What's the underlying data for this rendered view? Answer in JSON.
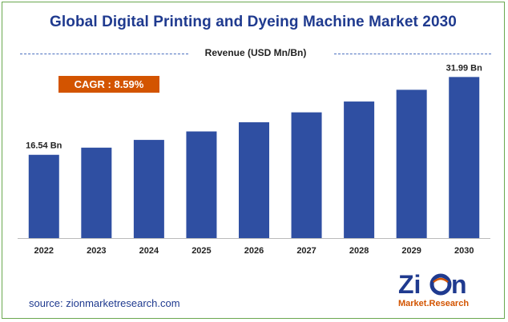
{
  "title": "Global Digital Printing and Dyeing Machine Market 2030",
  "subtitle": "Revenue (USD Mn/Bn)",
  "cagr": "CAGR : 8.59%",
  "source": "source: zionmarketresearch.com",
  "logo": {
    "top": "Zion",
    "bottom": "Market.Research"
  },
  "colors": {
    "bar": "#2f4fa2",
    "title": "#1f3a8f",
    "cagr_badge": "#d35400",
    "frame": "#6aa84f"
  },
  "chart_data": {
    "type": "bar",
    "categories": [
      "2022",
      "2023",
      "2024",
      "2025",
      "2026",
      "2027",
      "2028",
      "2029",
      "2030"
    ],
    "values": [
      16.54,
      17.96,
      19.5,
      21.18,
      23.0,
      24.97,
      27.12,
      29.45,
      31.99
    ],
    "data_labels": [
      {
        "index": 0,
        "text": "16.54 Bn"
      },
      {
        "index": 8,
        "text": "31.99 Bn"
      }
    ],
    "ylim": [
      0,
      33
    ],
    "grid": false
  }
}
